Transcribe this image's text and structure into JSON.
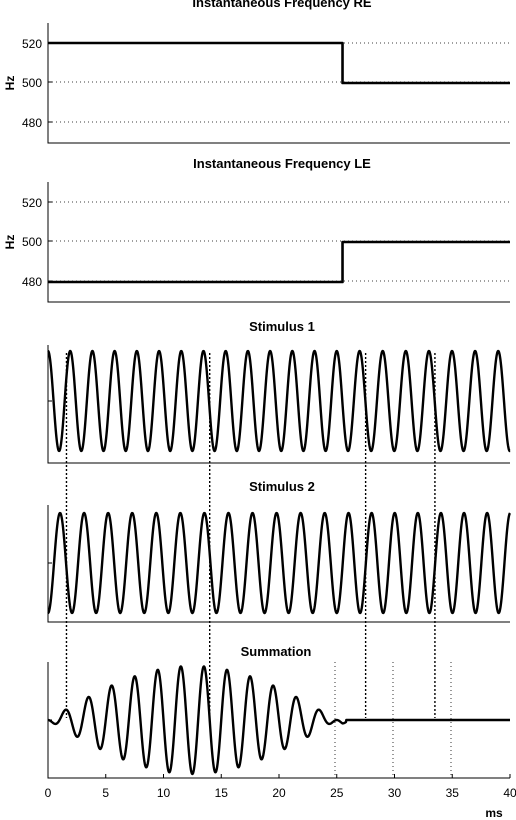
{
  "chart_data": [
    {
      "type": "line",
      "title": "Instantaneous Frequency RE",
      "ylabel": "Hz",
      "ylim": [
        470,
        530
      ],
      "xlim": [
        0,
        40
      ],
      "yticks": [
        "520",
        "500",
        "480"
      ],
      "grid": true,
      "series": [
        {
          "x": [
            0,
            25.5,
            25.5,
            40
          ],
          "y": [
            520,
            520,
            500,
            500
          ]
        }
      ]
    },
    {
      "type": "line",
      "title": "Instantaneous Frequency LE",
      "ylabel": "Hz",
      "ylim": [
        470,
        530
      ],
      "xlim": [
        0,
        40
      ],
      "yticks": [
        "520",
        "500",
        "480"
      ],
      "grid": true,
      "series": [
        {
          "x": [
            0,
            25.5,
            25.5,
            40
          ],
          "y": [
            480,
            480,
            500,
            500
          ]
        }
      ]
    },
    {
      "type": "line",
      "title": "Stimulus 1",
      "xlim": [
        0,
        40
      ],
      "ylim": [
        -1.1,
        1.1
      ],
      "series": [
        {
          "waveform": "sine",
          "freq_hz_before": 520,
          "freq_hz_after": 500,
          "switch_ms": 25.5,
          "amplitude": 1
        }
      ]
    },
    {
      "type": "line",
      "title": "Stimulus 2",
      "xlim": [
        0,
        40
      ],
      "ylim": [
        -1.1,
        1.1
      ],
      "series": [
        {
          "waveform": "sine",
          "freq_hz_before": 480,
          "freq_hz_after": 500,
          "switch_ms": 25.5,
          "amplitude": 1,
          "phase_inverted": true
        }
      ]
    },
    {
      "type": "line",
      "title": "Summation",
      "xlim": [
        0,
        40
      ],
      "ylim": [
        -2.1,
        2.1
      ],
      "xlabel": "ms",
      "xticks": [
        "0",
        "5",
        "10",
        "15",
        "20",
        "25",
        "30",
        "35",
        "40"
      ],
      "series": [
        {
          "waveform": "sum of Stimulus 1 and Stimulus 2"
        }
      ],
      "annotations": {
        "dotted_connectors_ms": [
          1.6,
          14.0,
          27.5,
          33.5
        ]
      }
    }
  ]
}
